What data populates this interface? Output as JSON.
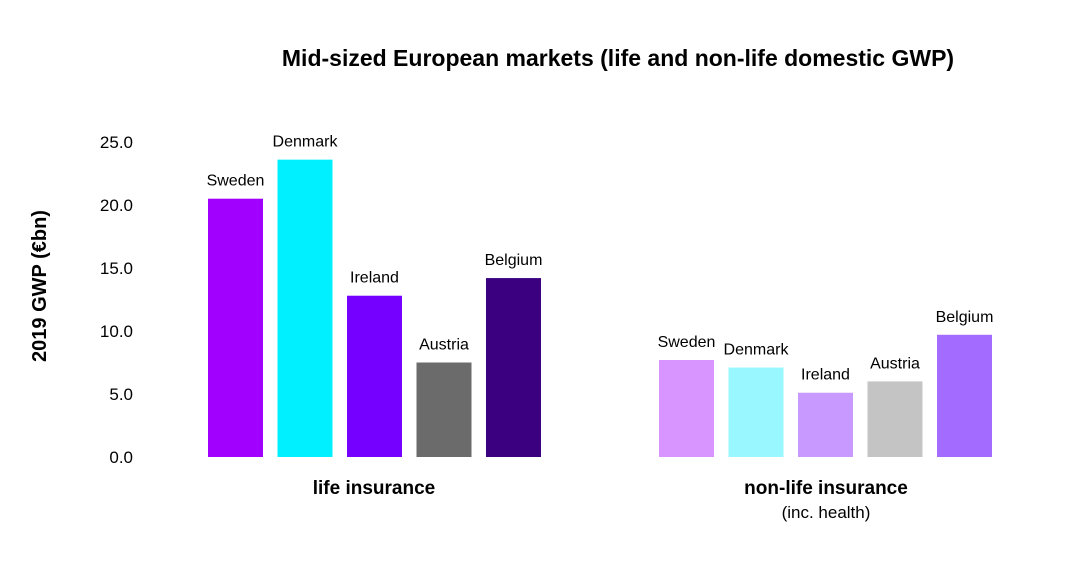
{
  "chart_data": {
    "type": "bar",
    "title": "Mid-sized European markets (life and non-life domestic GWP)",
    "ylabel": "2019 GWP (€bn)",
    "xlabel": "",
    "ylim": [
      0,
      25
    ],
    "yticks": [
      "0.0",
      "5.0",
      "10.0",
      "15.0",
      "20.0",
      "25.0"
    ],
    "grid": false,
    "groups": [
      {
        "label": "life insurance",
        "sublabel": "",
        "bars": [
          {
            "country": "Sweden",
            "value": 20.5,
            "color": "#a100ff"
          },
          {
            "country": "Denmark",
            "value": 23.6,
            "color": "#00f0ff"
          },
          {
            "country": "Ireland",
            "value": 12.8,
            "color": "#7500ff"
          },
          {
            "country": "Austria",
            "value": 7.5,
            "color": "#6b6b6b"
          },
          {
            "country": "Belgium",
            "value": 14.2,
            "color": "#3a007f"
          }
        ]
      },
      {
        "label": "non-life insurance",
        "sublabel": "(inc. health)",
        "bars": [
          {
            "country": "Sweden",
            "value": 7.7,
            "color": "#d894ff"
          },
          {
            "country": "Denmark",
            "value": 7.1,
            "color": "#99f7ff"
          },
          {
            "country": "Ireland",
            "value": 5.1,
            "color": "#c899ff"
          },
          {
            "country": "Austria",
            "value": 6.0,
            "color": "#c4c4c4"
          },
          {
            "country": "Belgium",
            "value": 9.7,
            "color": "#a36bff"
          }
        ]
      }
    ]
  }
}
